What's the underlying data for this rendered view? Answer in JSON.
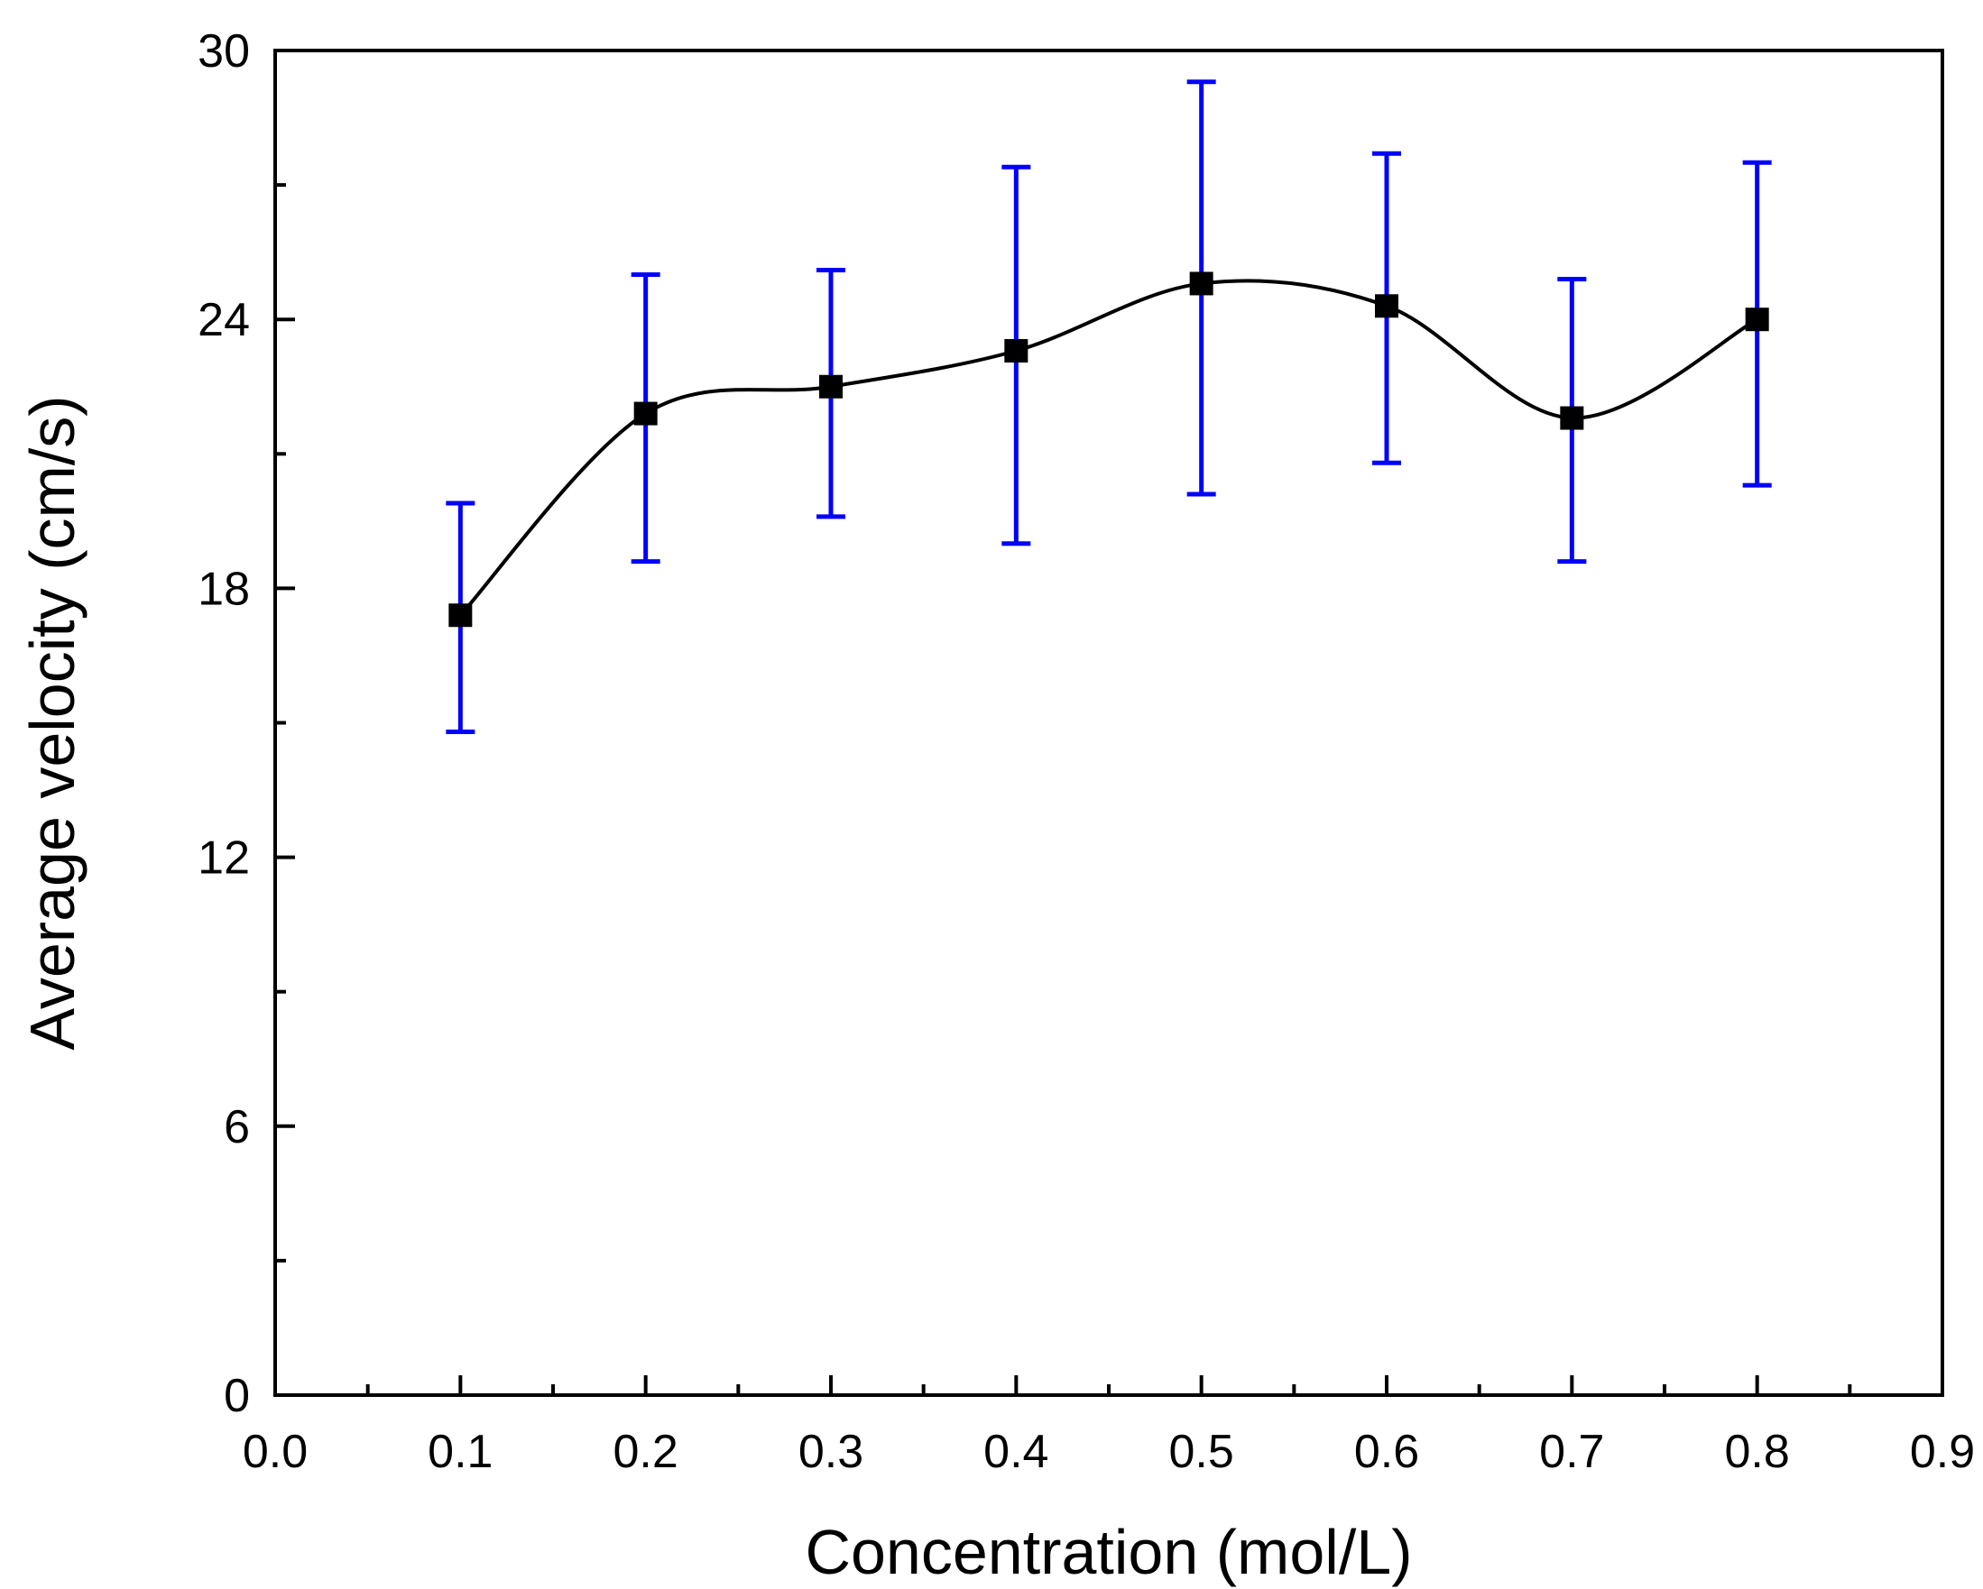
{
  "chart_data": {
    "type": "scatter",
    "title": "",
    "xlabel": "Concentration (mol/L)",
    "ylabel": "Average velocity (cm/s)",
    "xlim": [
      0.0,
      0.9
    ],
    "ylim": [
      0,
      30
    ],
    "x_ticks": [
      0.0,
      0.1,
      0.2,
      0.3,
      0.4,
      0.5,
      0.6,
      0.7,
      0.8,
      0.9
    ],
    "x_tick_labels": [
      "0.0",
      "0.1",
      "0.2",
      "0.3",
      "0.4",
      "0.5",
      "0.6",
      "0.7",
      "0.8",
      "0.9"
    ],
    "y_ticks": [
      0,
      6,
      12,
      18,
      24,
      30
    ],
    "y_tick_labels": [
      "0",
      "6",
      "12",
      "18",
      "24",
      "30"
    ],
    "grid": false,
    "series": [
      {
        "name": "Average velocity",
        "marker": "square",
        "marker_color": "#000000",
        "line": "spline",
        "line_color": "#000000",
        "error_bar_color": "#0000ff",
        "x": [
          0.1,
          0.2,
          0.3,
          0.4,
          0.5,
          0.6,
          0.7,
          0.8
        ],
        "y": [
          17.4,
          21.9,
          22.5,
          23.3,
          24.8,
          24.3,
          21.8,
          24.0
        ],
        "y_err_low": [
          14.8,
          18.6,
          19.6,
          19.0,
          20.1,
          20.8,
          18.6,
          20.3
        ],
        "y_err_high": [
          19.9,
          25.0,
          25.1,
          27.4,
          29.3,
          27.7,
          24.9,
          27.5
        ]
      }
    ]
  }
}
